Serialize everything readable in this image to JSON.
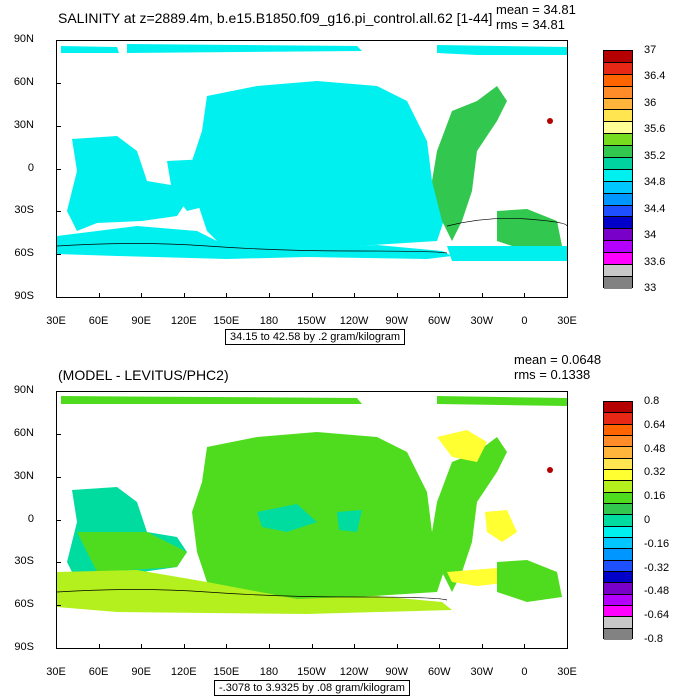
{
  "panel1": {
    "title": "SALINITY at z=2889.4m, b.e15.B1850.f09_g16.pi_control.all.62 [1-44]",
    "mean_text": "mean = 34.81",
    "rms_text": "rms = 34.81",
    "info": "34.15 to 42.58 by .2 gram/kilogram",
    "colorbar_labels": [
      "37",
      "36.4",
      "36",
      "35.6",
      "35.2",
      "34.8",
      "34.4",
      "34",
      "33.6",
      "33"
    ],
    "colorbar_colors": [
      "#b40000",
      "#e62814",
      "#ff6400",
      "#ff8c28",
      "#ffb43c",
      "#ffe650",
      "#ffff96",
      "#78dc1e",
      "#32c850",
      "#00d2a0",
      "#00f0f0",
      "#00c8ff",
      "#0096ff",
      "#1e50ff",
      "#0000c8",
      "#7800c8",
      "#b400ff",
      "#ff00ff",
      "#c8c8c8",
      "#828282"
    ]
  },
  "panel2": {
    "title": "(MODEL - LEVITUS/PHC2)",
    "mean_text": "mean = 0.0648",
    "rms_text": "rms = 0.1338",
    "info": "-.3078 to 3.9325 by .08 gram/kilogram",
    "colorbar_labels": [
      "0.8",
      "0.64",
      "0.48",
      "0.32",
      "0.16",
      "0",
      "-0.16",
      "-0.32",
      "-0.48",
      "-0.64",
      "-0.8"
    ],
    "colorbar_colors": [
      "#b40000",
      "#e62814",
      "#ff6400",
      "#ff8c28",
      "#ffb43c",
      "#ffe650",
      "#ffff32",
      "#b4f01e",
      "#50dc1e",
      "#32c850",
      "#00dca0",
      "#00f0f0",
      "#00c8ff",
      "#0096ff",
      "#1e50ff",
      "#0000c8",
      "#7800c8",
      "#b400ff",
      "#ff00ff",
      "#c8c8c8",
      "#828282"
    ]
  },
  "axes": {
    "lat_labels": [
      "90N",
      "60N",
      "30N",
      "0",
      "30S",
      "60S",
      "90S"
    ],
    "lon_labels": [
      "30E",
      "60E",
      "90E",
      "120E",
      "150E",
      "180",
      "150W",
      "120W",
      "90W",
      "60W",
      "30W",
      "0",
      "30E"
    ]
  },
  "map_colors": {
    "salinity_ocean": "#00f0f0",
    "salinity_atlantic": "#32c850",
    "anomaly_ocean": "#50dc1e",
    "anomaly_southern": "#b4f01e",
    "anomaly_negative": "#00dca0",
    "anomaly_positive": "#ffff32",
    "hotspot": "#b40000"
  }
}
